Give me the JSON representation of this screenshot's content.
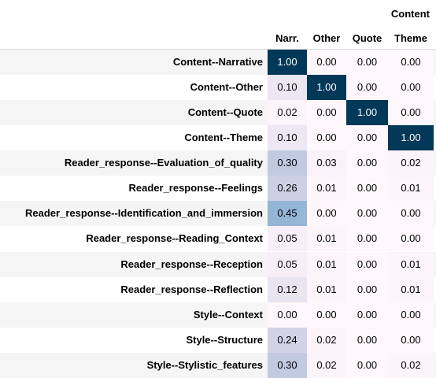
{
  "chart_data": {
    "type": "heatmap",
    "column_group_label": "Content",
    "columns": [
      "Narr.",
      "Other",
      "Quote",
      "Theme"
    ],
    "rows": [
      {
        "label": "Content--Narrative",
        "values": [
          "1.00",
          "0.00",
          "0.00",
          "0.00"
        ]
      },
      {
        "label": "Content--Other",
        "values": [
          "0.10",
          "1.00",
          "0.00",
          "0.00"
        ]
      },
      {
        "label": "Content--Quote",
        "values": [
          "0.02",
          "0.00",
          "1.00",
          "0.00"
        ]
      },
      {
        "label": "Content--Theme",
        "values": [
          "0.10",
          "0.00",
          "0.00",
          "1.00"
        ]
      },
      {
        "label": "Reader_response--Evaluation_of_quality",
        "values": [
          "0.30",
          "0.03",
          "0.00",
          "0.02"
        ]
      },
      {
        "label": "Reader_response--Feelings",
        "values": [
          "0.26",
          "0.01",
          "0.00",
          "0.01"
        ]
      },
      {
        "label": "Reader_response--Identification_and_immersion",
        "values": [
          "0.45",
          "0.00",
          "0.00",
          "0.00"
        ]
      },
      {
        "label": "Reader_response--Reading_Context",
        "values": [
          "0.05",
          "0.01",
          "0.00",
          "0.00"
        ]
      },
      {
        "label": "Reader_response--Reception",
        "values": [
          "0.05",
          "0.01",
          "0.00",
          "0.01"
        ]
      },
      {
        "label": "Reader_response--Reflection",
        "values": [
          "0.12",
          "0.01",
          "0.00",
          "0.01"
        ]
      },
      {
        "label": "Style--Context",
        "values": [
          "0.00",
          "0.00",
          "0.00",
          "0.00"
        ]
      },
      {
        "label": "Style--Structure",
        "values": [
          "0.24",
          "0.02",
          "0.00",
          "0.00"
        ]
      },
      {
        "label": "Style--Stylistic_features",
        "values": [
          "0.30",
          "0.02",
          "0.00",
          "0.02"
        ]
      }
    ],
    "color_scale": {
      "min": 0,
      "max": 1,
      "low_color": "#fff7fb",
      "high_color": "#023858"
    },
    "row_stripe_color": "#f5f5f5"
  }
}
